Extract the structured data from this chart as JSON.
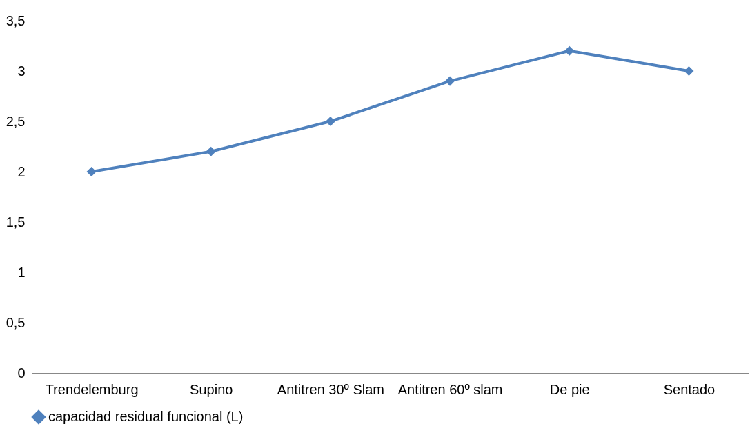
{
  "chart_data": {
    "type": "line",
    "categories": [
      "Trendelemburg",
      "Supino",
      "Antitren 30º Slam",
      "Antitren 60º slam",
      "De pie",
      "Sentado"
    ],
    "series": [
      {
        "name": "capacidad residual funcional (L)",
        "color": "#4f81bd",
        "values": [
          2,
          2.2,
          2.5,
          2.9,
          3.2,
          3
        ]
      }
    ],
    "ylim": [
      0,
      3.5
    ],
    "yticks": [
      0,
      {
        "value": 0.5,
        "label": "0,5"
      },
      1,
      {
        "value": 1.5,
        "label": "1,5"
      },
      2,
      {
        "value": 2.5,
        "label": "2,5"
      },
      3,
      {
        "value": 3.5,
        "label": "3,5"
      }
    ],
    "grid": false,
    "legend": "bottom",
    "marker": "diamond",
    "line_style": "solid"
  }
}
